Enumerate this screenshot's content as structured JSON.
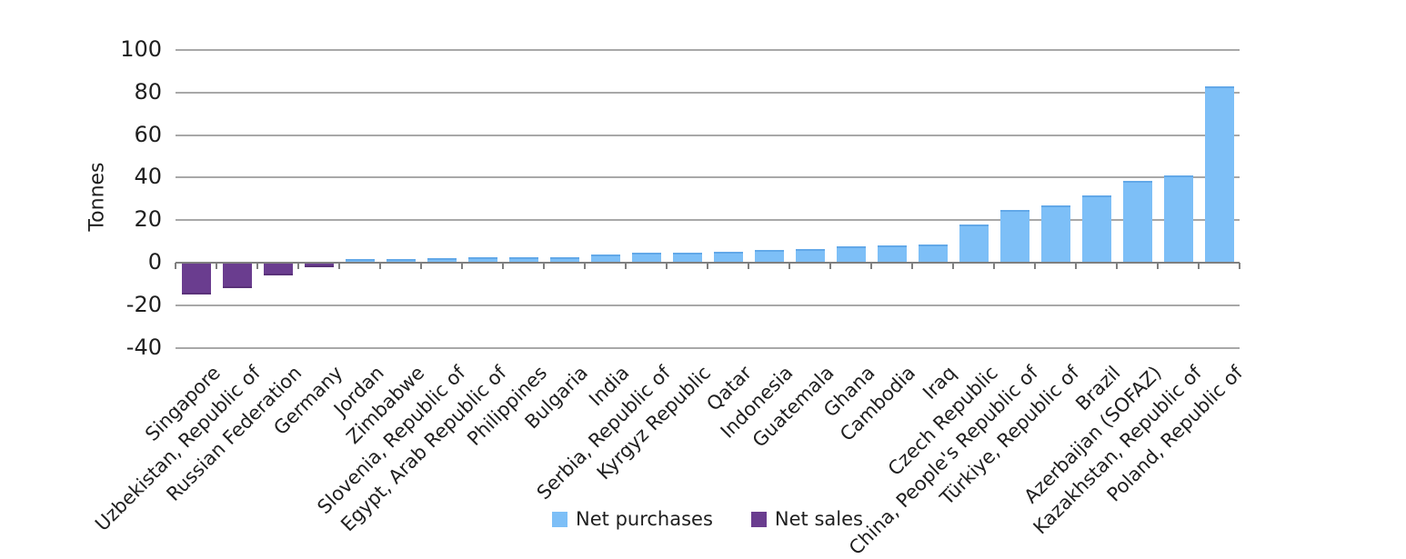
{
  "chart_data": {
    "type": "bar",
    "title": "",
    "xlabel": "",
    "ylabel": "Tonnes",
    "ylim": [
      -40,
      100
    ],
    "y_ticks": [
      100,
      80,
      60,
      40,
      20,
      0,
      -20,
      -40
    ],
    "grid": true,
    "legend_position": "bottom-center",
    "categories": [
      "Singapore",
      "Uzbekistan, Republic of",
      "Russian Federation",
      "Germany",
      "Jordan",
      "Zimbabwe",
      "Slovenia, Republic of",
      "Egypt, Arab Republic of",
      "Philippines",
      "Bulgaria",
      "India",
      "Serbia, Republic of",
      "Kyrgyz Republic",
      "Qatar",
      "Indonesia",
      "Guatemala",
      "Ghana",
      "Cambodia",
      "Iraq",
      "Czech Republic",
      "China, People's Republic of",
      "Türkiye, Republic of",
      "Brazil",
      "Azerbaijan (SOFAZ)",
      "Kazakhstan, Republic of",
      "Poland, Republic of"
    ],
    "values": [
      -15,
      -12,
      -6,
      -2,
      1.5,
      1.5,
      2,
      2.5,
      2.5,
      2.5,
      4,
      4.5,
      4.5,
      5,
      6,
      6.5,
      7.5,
      8,
      8.5,
      18,
      25,
      27,
      31.5,
      38.5,
      41,
      83
    ],
    "colors": {
      "net_purchases": "#7dbff7",
      "net_sales": "#6a3d8f",
      "gridline": "#a8a8a8",
      "axis": "#7f7f7f"
    },
    "legend": [
      {
        "label": "Net purchases",
        "swatch_color": "#7dbff7"
      },
      {
        "label": "Net sales",
        "swatch_color": "#6a3d8f"
      }
    ]
  }
}
